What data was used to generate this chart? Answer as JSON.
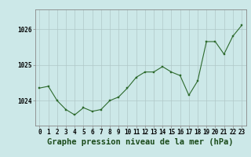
{
  "x": [
    0,
    1,
    2,
    3,
    4,
    5,
    6,
    7,
    8,
    9,
    10,
    11,
    12,
    13,
    14,
    15,
    16,
    17,
    18,
    19,
    20,
    21,
    22,
    23
  ],
  "y": [
    1024.35,
    1024.4,
    1024.0,
    1023.75,
    1023.6,
    1023.8,
    1023.7,
    1023.75,
    1024.0,
    1024.1,
    1024.35,
    1024.65,
    1024.8,
    1024.8,
    1024.95,
    1024.8,
    1024.7,
    1024.15,
    1024.55,
    1025.65,
    1025.65,
    1025.3,
    1025.8,
    1026.1
  ],
  "line_color": "#2d6a2d",
  "marker_color": "#2d6a2d",
  "background_color": "#cce8e8",
  "grid_color": "#b0c8c8",
  "title": "Graphe pression niveau de la mer (hPa)",
  "xlabel_ticks": [
    "0",
    "1",
    "2",
    "3",
    "4",
    "5",
    "6",
    "7",
    "8",
    "9",
    "10",
    "11",
    "12",
    "13",
    "14",
    "15",
    "16",
    "17",
    "18",
    "19",
    "20",
    "21",
    "22",
    "23"
  ],
  "yticks": [
    1024,
    1025,
    1026
  ],
  "ylim": [
    1023.3,
    1026.55
  ],
  "xlim": [
    -0.5,
    23.5
  ],
  "tick_fontsize": 5.5,
  "label_fontsize": 7.5,
  "outer_bg": "#cce8e8"
}
